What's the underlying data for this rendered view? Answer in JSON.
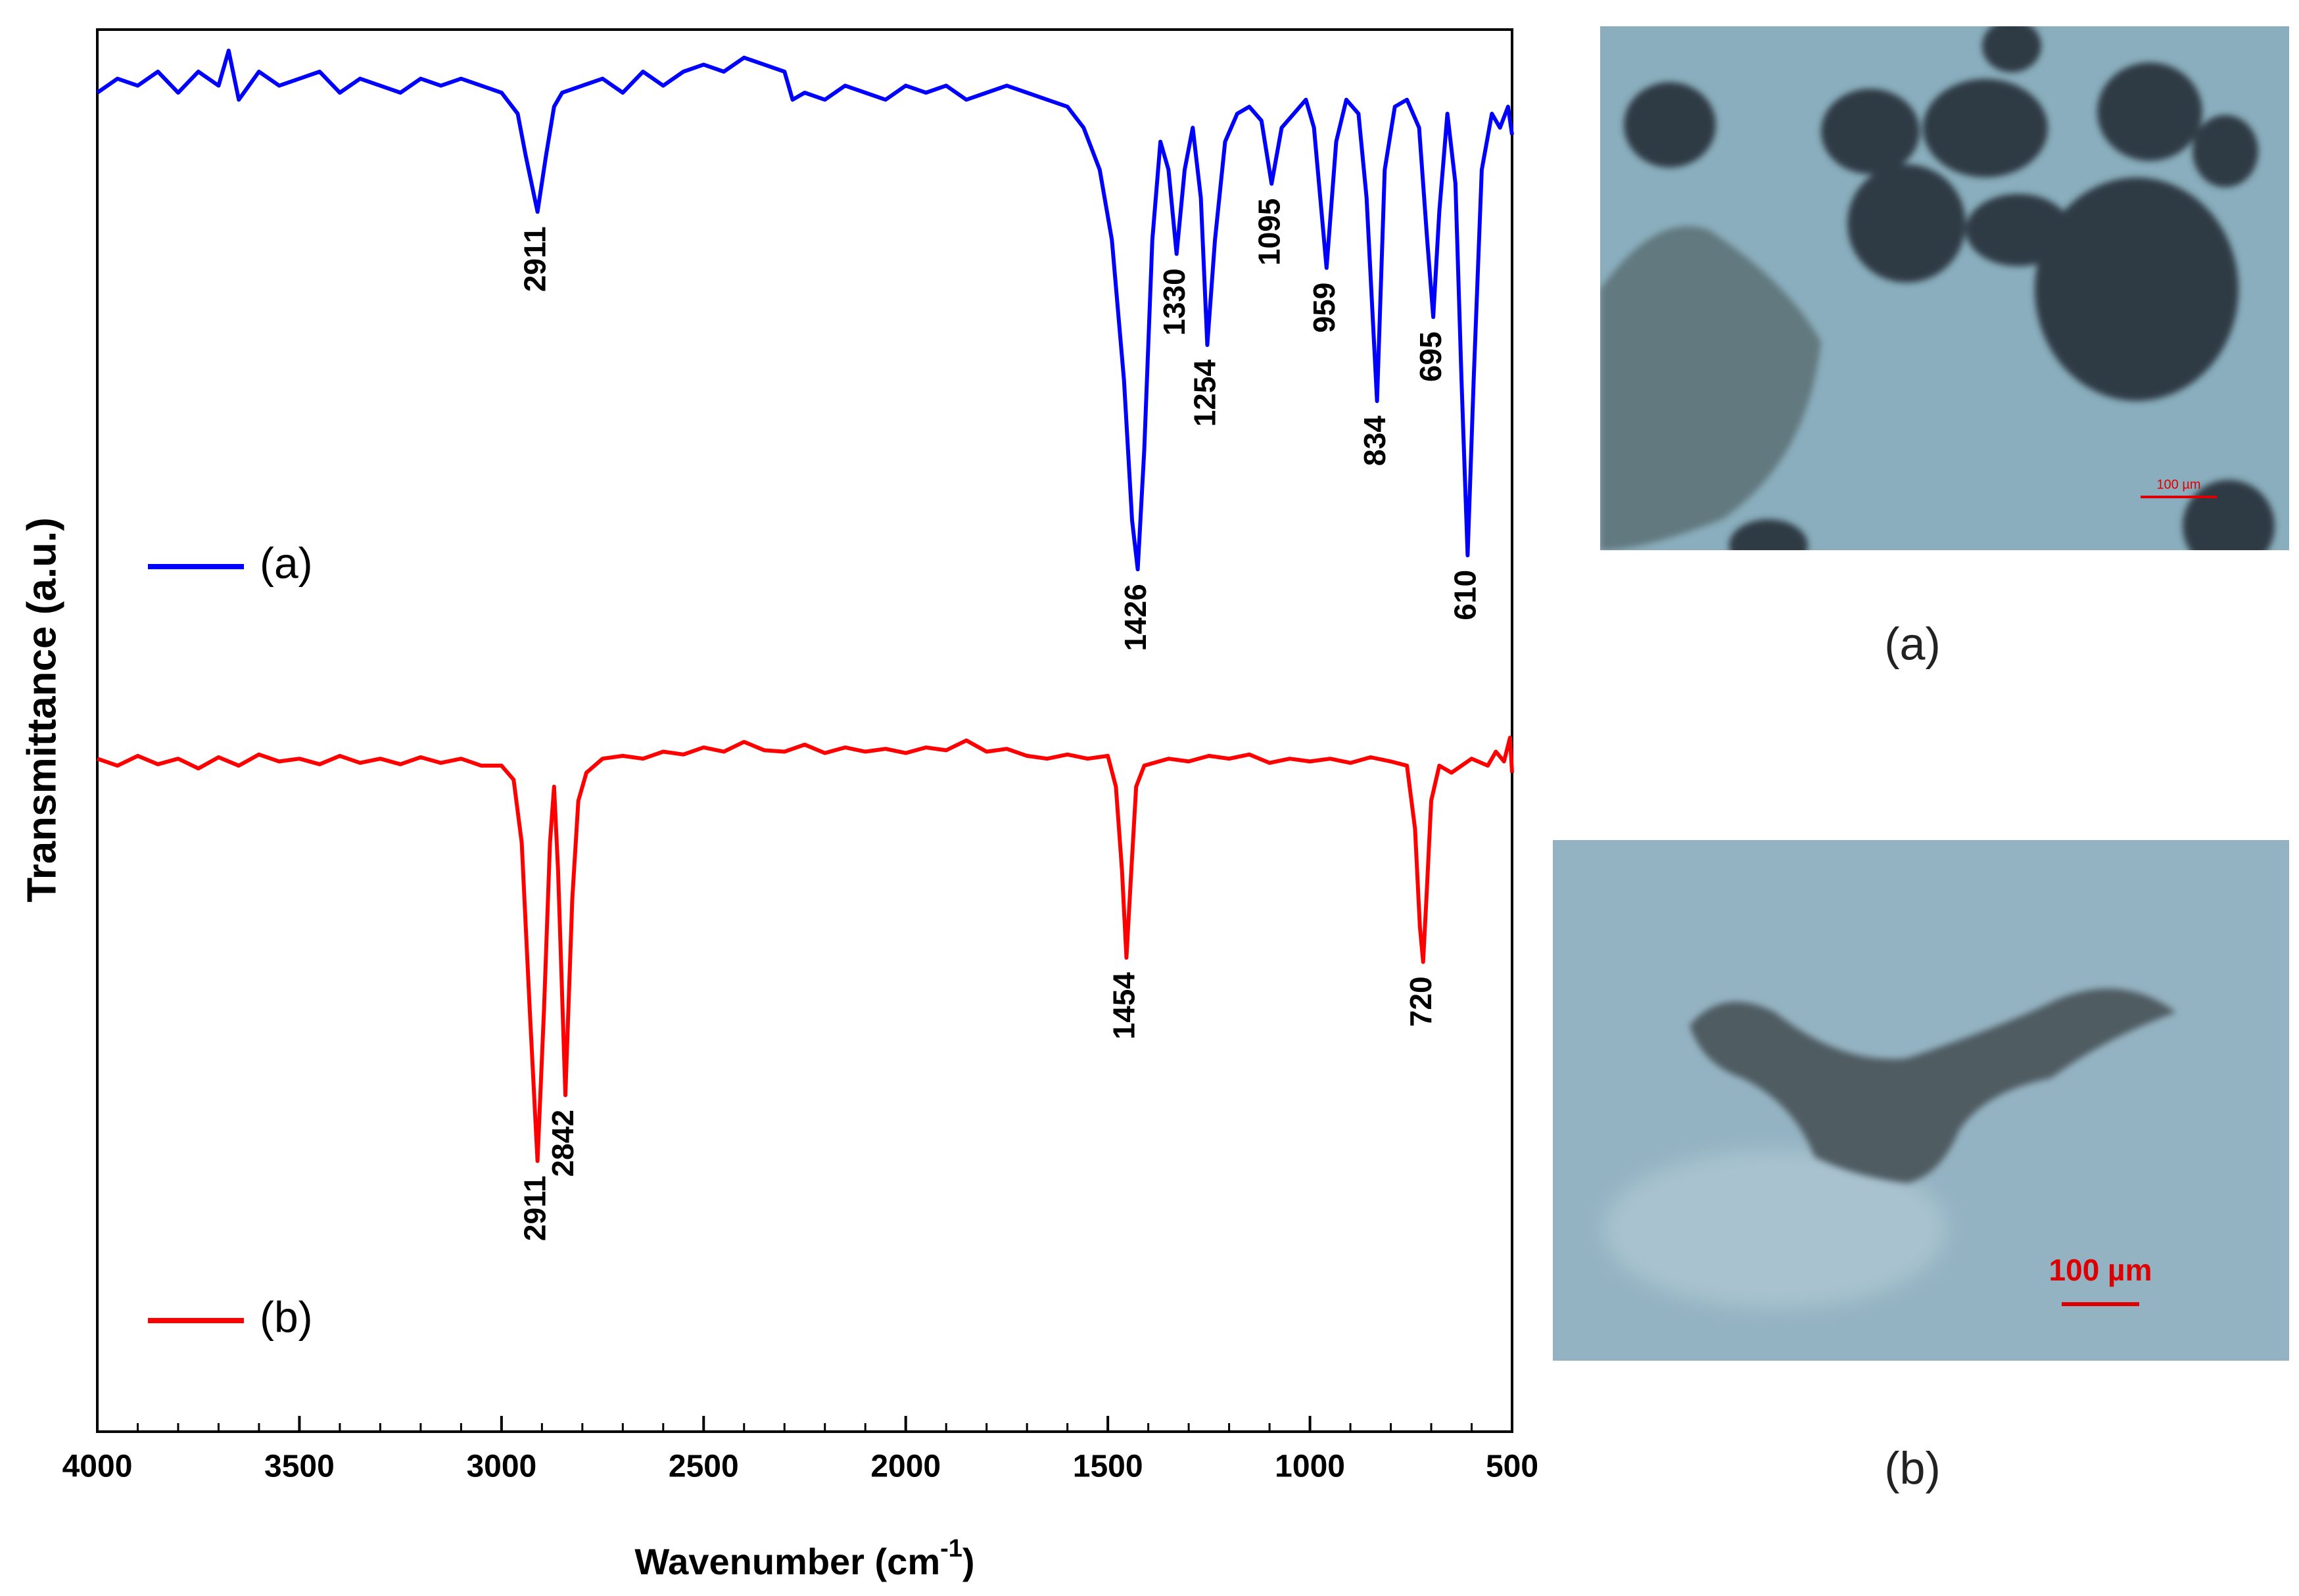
{
  "chart_data": {
    "type": "line",
    "ylabel": "Transmittance (a.u.)",
    "xlabel": [
      "Wavenumber (cm",
      "-1",
      ")"
    ],
    "xlim": [
      4000,
      500
    ],
    "xticks": [
      4000,
      3500,
      3000,
      2500,
      2000,
      1500,
      1000,
      500
    ],
    "ylim": [
      0,
      100
    ],
    "series": [
      {
        "name": "(a)",
        "color": "#0000ff",
        "x": [
          4000,
          3950,
          3900,
          3850,
          3800,
          3750,
          3700,
          3675,
          3650,
          3600,
          3550,
          3500,
          3450,
          3400,
          3350,
          3300,
          3250,
          3200,
          3150,
          3100,
          3050,
          3000,
          2960,
          2940,
          2911,
          2890,
          2870,
          2850,
          2800,
          2750,
          2700,
          2650,
          2600,
          2550,
          2500,
          2450,
          2400,
          2350,
          2300,
          2280,
          2250,
          2200,
          2150,
          2100,
          2050,
          2000,
          1950,
          1900,
          1850,
          1800,
          1750,
          1700,
          1650,
          1600,
          1560,
          1520,
          1490,
          1460,
          1440,
          1426,
          1410,
          1390,
          1370,
          1350,
          1330,
          1310,
          1290,
          1270,
          1254,
          1235,
          1210,
          1180,
          1150,
          1120,
          1095,
          1070,
          1040,
          1010,
          990,
          959,
          935,
          910,
          880,
          860,
          834,
          815,
          790,
          760,
          730,
          710,
          695,
          680,
          660,
          640,
          625,
          610,
          595,
          575,
          550,
          530,
          510,
          500
        ],
        "values": [
          95.5,
          96.5,
          96,
          97,
          95.5,
          97,
          96,
          98.5,
          95,
          97,
          96,
          96.5,
          97,
          95.5,
          96.5,
          96,
          95.5,
          96.5,
          96,
          96.5,
          96,
          95.5,
          94,
          91,
          87,
          91,
          94.5,
          95.5,
          96,
          96.5,
          95.5,
          97,
          96,
          97,
          97.5,
          97,
          98,
          97.5,
          97,
          95,
          95.5,
          95,
          96,
          95.5,
          95,
          96,
          95.5,
          96,
          95,
          95.5,
          96,
          95.5,
          95,
          94.5,
          93,
          90,
          85,
          75,
          65,
          61.5,
          70,
          85,
          92,
          90,
          84,
          90,
          93,
          88,
          77.5,
          85,
          92,
          94,
          94.5,
          93.5,
          89,
          93,
          94,
          95,
          93,
          83,
          92,
          95,
          94,
          88,
          73.5,
          90,
          94.5,
          95,
          93,
          85,
          79.5,
          87,
          94,
          89,
          75,
          62.5,
          75,
          90,
          94,
          93,
          94.5,
          92.5
        ],
        "peak_labels": [
          2911,
          1426,
          1330,
          1254,
          1095,
          959,
          834,
          695,
          610
        ]
      },
      {
        "name": "(b)",
        "color": "#ff0000",
        "x": [
          4000,
          3950,
          3900,
          3850,
          3800,
          3750,
          3700,
          3650,
          3600,
          3550,
          3500,
          3450,
          3400,
          3350,
          3300,
          3250,
          3200,
          3150,
          3100,
          3050,
          3000,
          2970,
          2950,
          2930,
          2911,
          2895,
          2880,
          2870,
          2860,
          2842,
          2825,
          2810,
          2790,
          2750,
          2700,
          2650,
          2600,
          2550,
          2500,
          2450,
          2400,
          2350,
          2300,
          2250,
          2200,
          2150,
          2100,
          2050,
          2000,
          1950,
          1900,
          1850,
          1800,
          1750,
          1700,
          1650,
          1600,
          1550,
          1500,
          1480,
          1465,
          1454,
          1442,
          1430,
          1410,
          1350,
          1300,
          1250,
          1200,
          1150,
          1100,
          1050,
          1000,
          950,
          900,
          850,
          800,
          760,
          740,
          728,
          720,
          712,
          700,
          680,
          650,
          600,
          560,
          540,
          520,
          505,
          500
        ],
        "values": [
          48,
          47.5,
          48.2,
          47.6,
          48,
          47.3,
          48.1,
          47.5,
          48.3,
          47.8,
          48,
          47.6,
          48.2,
          47.7,
          48,
          47.6,
          48.1,
          47.7,
          48,
          47.5,
          47.5,
          46.5,
          42,
          30,
          19.3,
          30,
          42,
          46,
          40,
          24,
          38,
          45,
          47,
          48,
          48.2,
          48,
          48.5,
          48.3,
          48.8,
          48.5,
          49.2,
          48.6,
          48.5,
          49,
          48.4,
          48.8,
          48.5,
          48.7,
          48.4,
          48.8,
          48.6,
          49.3,
          48.5,
          48.7,
          48.2,
          48,
          48.3,
          48,
          48.2,
          46,
          40,
          33.8,
          40,
          46,
          47.5,
          48,
          47.8,
          48.2,
          48,
          48.3,
          47.7,
          48,
          47.8,
          48,
          47.7,
          48.1,
          47.8,
          47.5,
          43,
          36,
          33.5,
          38,
          45,
          47.5,
          47,
          48,
          47.5,
          48.5,
          47.8,
          49.5,
          47
        ],
        "peak_labels": [
          2911,
          2842,
          1454,
          720
        ]
      }
    ]
  },
  "images": [
    {
      "caption": "(a)",
      "scale_bar": "100 µm"
    },
    {
      "caption": "(b)",
      "scale_bar": "100 µm"
    }
  ]
}
